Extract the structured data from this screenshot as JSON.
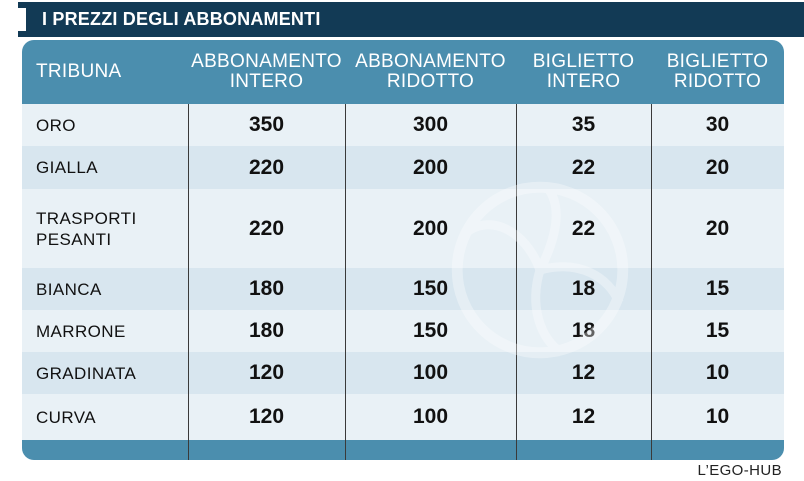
{
  "title": "I PREZZI DEGLI ABBONAMENTI",
  "source": "L’EGO-HUB",
  "colors": {
    "title_bg": "#123a55",
    "header_bg": "#4b8eae",
    "row_light": "#e9f1f6",
    "row_mid": "#d8e6ef"
  },
  "watermark_icon": "volleyball-icon",
  "chart_data": {
    "type": "table",
    "title": "I PREZZI DEGLI ABBONAMENTI",
    "columns": [
      [
        "TRIBUNA"
      ],
      [
        "ABBONAMENTO",
        "INTERO"
      ],
      [
        "ABBONAMENTO",
        "RIDOTTO"
      ],
      [
        "BIGLIETTO",
        "INTERO"
      ],
      [
        "BIGLIETTO",
        "RIDOTTO"
      ]
    ],
    "rows": [
      {
        "name": [
          "ORO"
        ],
        "values": [
          350,
          300,
          35,
          30
        ]
      },
      {
        "name": [
          "GIALLA"
        ],
        "values": [
          220,
          200,
          22,
          20
        ]
      },
      {
        "name": [
          "TRASPORTI",
          "PESANTI"
        ],
        "values": [
          220,
          200,
          22,
          20
        ]
      },
      {
        "name": [
          "BIANCA"
        ],
        "values": [
          180,
          150,
          18,
          15
        ]
      },
      {
        "name": [
          "MARRONE"
        ],
        "values": [
          180,
          150,
          18,
          15
        ]
      },
      {
        "name": [
          "GRADINATA"
        ],
        "values": [
          120,
          100,
          12,
          10
        ]
      },
      {
        "name": [
          "CURVA"
        ],
        "values": [
          120,
          100,
          12,
          10
        ]
      }
    ]
  }
}
